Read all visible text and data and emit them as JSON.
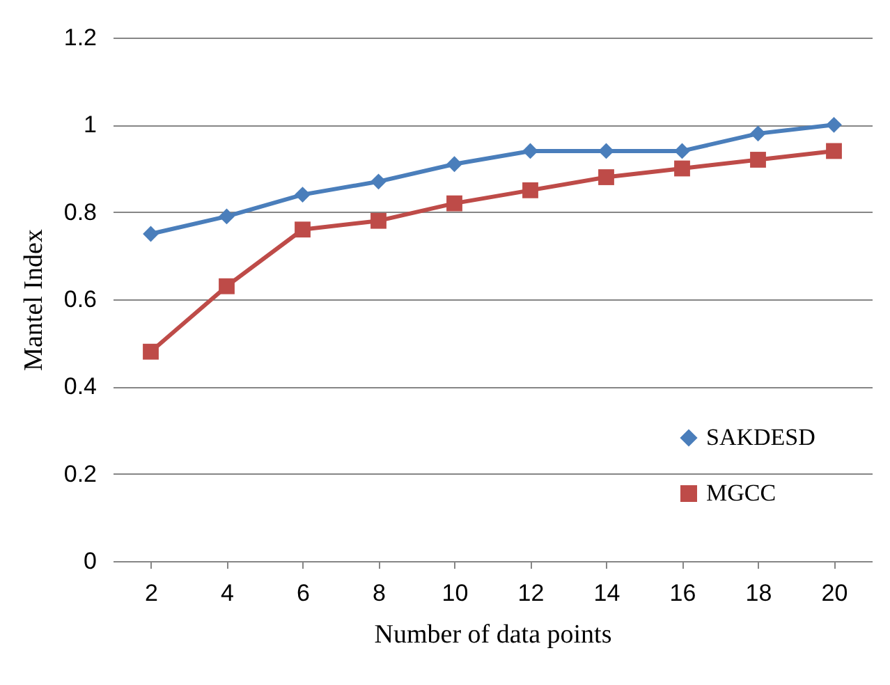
{
  "chart_data": {
    "type": "line",
    "xlabel": "Number of data points",
    "ylabel": "Mantel Index",
    "categories": [
      "2",
      "4",
      "6",
      "8",
      "10",
      "12",
      "14",
      "16",
      "18",
      "20"
    ],
    "series": [
      {
        "name": "SAKDESD",
        "color": "#4a7ebb",
        "marker": "diamond",
        "values": [
          0.75,
          0.79,
          0.84,
          0.87,
          0.91,
          0.94,
          0.94,
          0.94,
          0.98,
          1.0
        ]
      },
      {
        "name": "MGCC",
        "color": "#be4b48",
        "marker": "square",
        "values": [
          0.48,
          0.63,
          0.76,
          0.78,
          0.82,
          0.85,
          0.88,
          0.9,
          0.92,
          0.94
        ]
      }
    ],
    "ylim": [
      0,
      1.2
    ],
    "yticks": [
      0,
      0.2,
      0.4,
      0.6,
      0.8,
      1,
      1.2
    ],
    "grid": "y",
    "legend": "bottom right",
    "line_style": "solid"
  }
}
